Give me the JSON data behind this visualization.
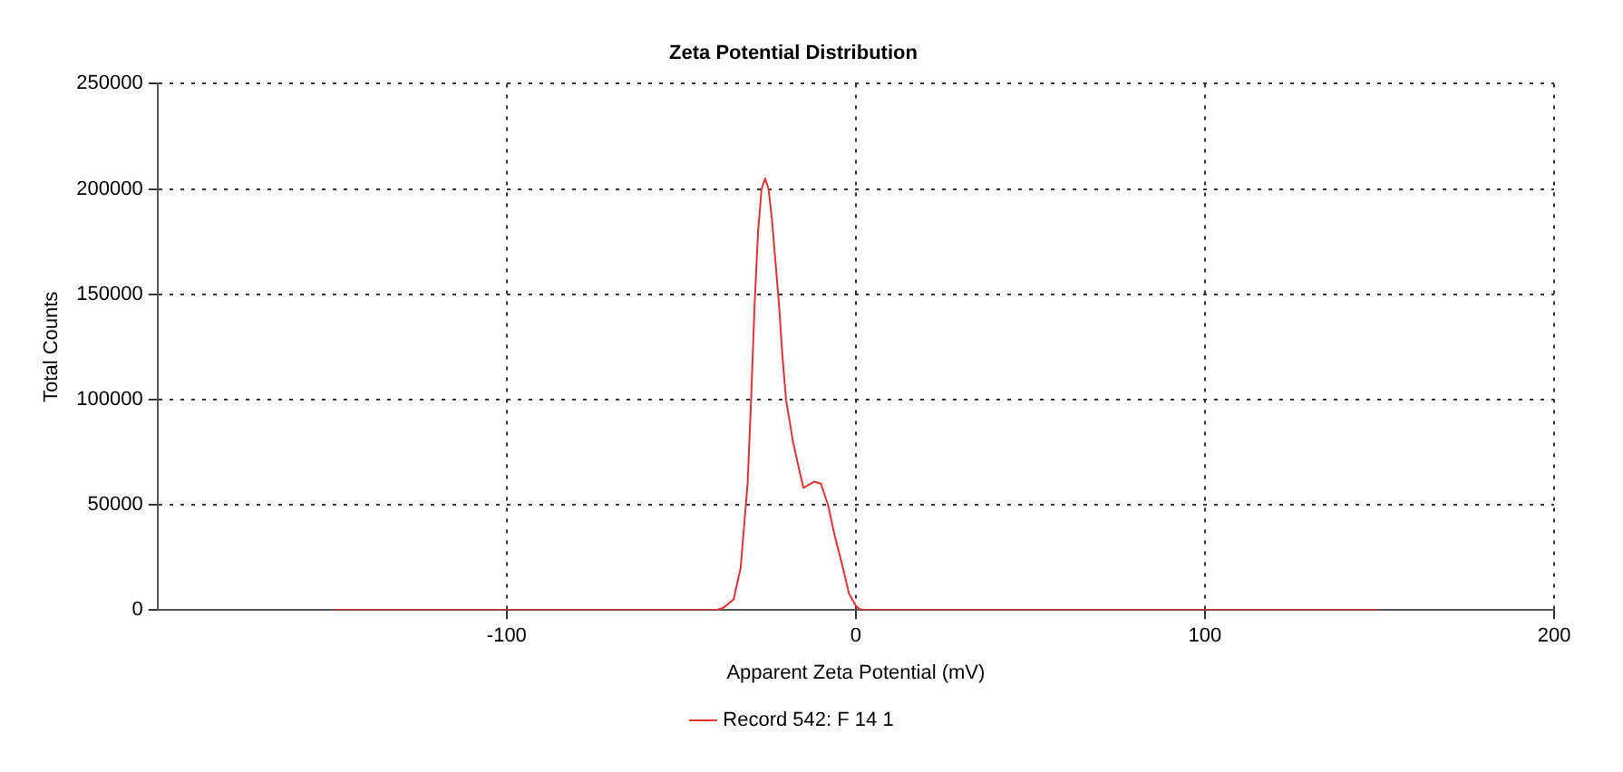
{
  "chart_data": {
    "type": "line",
    "title": "Zeta Potential Distribution",
    "xlabel": "Apparent Zeta Potential (mV)",
    "ylabel": "Total Counts",
    "x": [
      -150,
      -100,
      -50,
      -40,
      -38,
      -35,
      -33,
      -31,
      -30,
      -29,
      -28,
      -27,
      -26,
      -25,
      -24,
      -23,
      -22,
      -21,
      -20,
      -18,
      -16,
      -15,
      -13,
      -12,
      -10,
      -8,
      -6,
      -4,
      -2,
      0,
      1,
      2,
      50,
      100,
      150
    ],
    "series": [
      {
        "name": "Record 542: F 14 1",
        "color": "#e8302f",
        "values": [
          0,
          0,
          0,
          0,
          1000,
          5000,
          20000,
          60000,
          100000,
          145000,
          180000,
          200000,
          205000,
          200000,
          185000,
          165000,
          145000,
          120000,
          100000,
          80000,
          65000,
          58000,
          60000,
          61000,
          60000,
          50000,
          35000,
          22000,
          8000,
          2000,
          500,
          0,
          0,
          0,
          0
        ]
      }
    ],
    "xlim": [
      -200,
      200
    ],
    "xticks": [
      -100,
      0,
      100,
      200
    ],
    "ylim": [
      0,
      250000
    ],
    "yticks": [
      0,
      50000,
      100000,
      150000,
      200000,
      250000
    ],
    "grid": true,
    "line_style": "solid",
    "marker": "none",
    "legend": "bottom"
  }
}
